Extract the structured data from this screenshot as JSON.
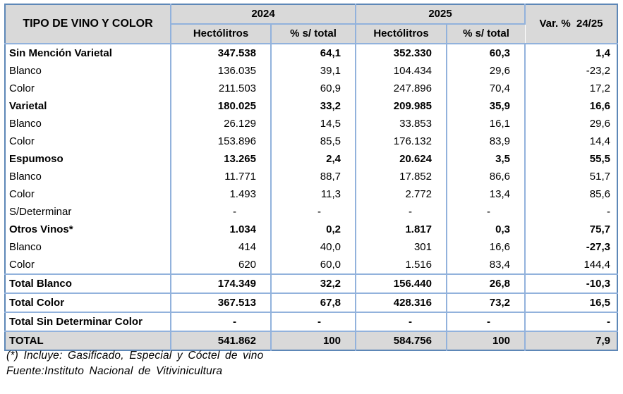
{
  "table": {
    "corner_header": "TIPO DE VINO Y COLOR",
    "year_2024": "2024",
    "year_2025": "2025",
    "var_header": "Var. %  24/25",
    "sub_headers": [
      "Hectólitros",
      "% s/ total",
      "Hectólitros",
      "% s/ total"
    ],
    "rows": [
      {
        "label": "Sin Mención Varietal",
        "h24": "347.538",
        "p24": "64,1",
        "h25": "352.330",
        "p25": "60,3",
        "variation": "1,4",
        "bold": true
      },
      {
        "label": "Blanco",
        "h24": "136.035",
        "p24": "39,1",
        "h25": "104.434",
        "p25": "29,6",
        "variation": "-23,2"
      },
      {
        "label": "Color",
        "h24": "211.503",
        "p24": "60,9",
        "h25": "247.896",
        "p25": "70,4",
        "variation": "17,2"
      },
      {
        "label": "Varietal",
        "h24": "180.025",
        "p24": "33,2",
        "h25": "209.985",
        "p25": "35,9",
        "variation": "16,6",
        "bold": true
      },
      {
        "label": "Blanco",
        "h24": "26.129",
        "p24": "14,5",
        "h25": "33.853",
        "p25": "16,1",
        "variation": "29,6"
      },
      {
        "label": "Color",
        "h24": "153.896",
        "p24": "85,5",
        "h25": "176.132",
        "p25": "83,9",
        "variation": "14,4"
      },
      {
        "label": "Espumoso",
        "h24": "13.265",
        "p24": "2,4",
        "h25": "20.624",
        "p25": "3,5",
        "variation": "55,5",
        "bold": true
      },
      {
        "label": "Blanco",
        "h24": "11.771",
        "p24": "88,7",
        "h25": "17.852",
        "p25": "86,6",
        "variation": "51,7"
      },
      {
        "label": "Color",
        "h24": "1.493",
        "p24": "11,3",
        "h25": "2.772",
        "p25": "13,4",
        "variation": "85,6"
      },
      {
        "label": "S/Determinar",
        "h24": "-",
        "p24": "-",
        "h25": "-",
        "p25": "-",
        "variation": "-"
      },
      {
        "label": "Otros Vinos*",
        "h24": "1.034",
        "p24": "0,2",
        "h25": "1.817",
        "p25": "0,3",
        "variation": "75,7",
        "bold": true,
        "var_bold": false
      },
      {
        "label": "Blanco",
        "h24": "414",
        "p24": "40,0",
        "h25": "301",
        "p25": "16,6",
        "variation": "-27,3",
        "var_bold": true
      },
      {
        "label": "Color",
        "h24": "620",
        "p24": "60,0",
        "h25": "1.516",
        "p25": "83,4",
        "variation": "144,4"
      },
      {
        "label": "Total Blanco",
        "h24": "174.349",
        "p24": "32,2",
        "h25": "156.440",
        "p25": "26,8",
        "variation": "-10,3",
        "bold": true,
        "topline": true
      },
      {
        "label": "Total Color",
        "h24": "367.513",
        "p24": "67,8",
        "h25": "428.316",
        "p25": "73,2",
        "variation": "16,5",
        "bold": true,
        "topline": true
      },
      {
        "label": "Total Sin Determinar Color",
        "h24": "-",
        "p24": "-",
        "h25": "-",
        "p25": "-",
        "variation": "-",
        "bold": true,
        "topline": true
      },
      {
        "label": "TOTAL",
        "h24": "541.862",
        "p24": "100",
        "h25": "584.756",
        "p25": "100",
        "variation": "7,9",
        "bold": true,
        "topline": true,
        "fill": true
      }
    ]
  },
  "footnotes": [
    "(*) Incluye: Gasificado, Especial y Cóctel de vino",
    "Fuente:Instituto Nacional de Vitivinicultura"
  ],
  "colors": {
    "header_fill": "#d9d9d9",
    "total_row_fill": "#d9d9d9",
    "border_inner": "#92b2dc",
    "border_outer": "#5d87b7"
  }
}
